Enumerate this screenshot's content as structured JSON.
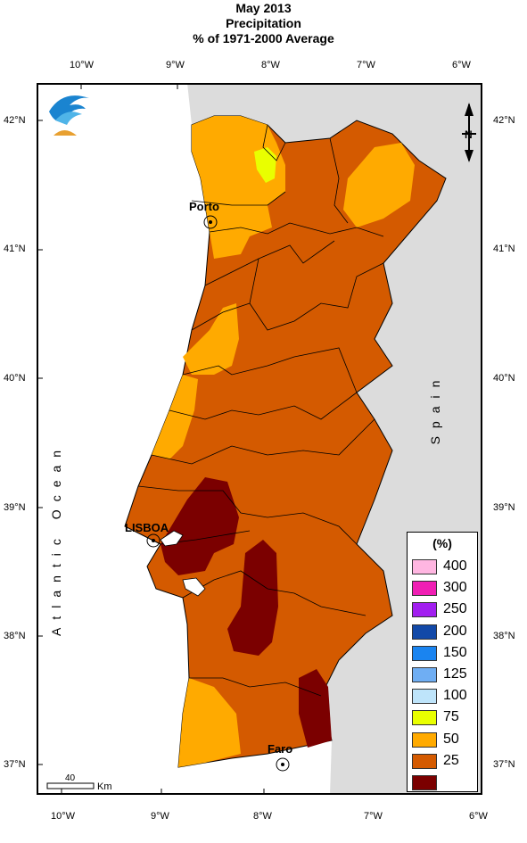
{
  "title": {
    "line1": "May 2013",
    "line2": "Precipitation",
    "line3": "% of 1971-2000 Average"
  },
  "axes": {
    "lon_ticks": [
      "10°W",
      "9°W",
      "8°W",
      "7°W",
      "6°W"
    ],
    "lat_ticks": [
      "42°N",
      "41°N",
      "40°N",
      "39°N",
      "38°N",
      "37°N"
    ]
  },
  "map": {
    "labels": {
      "ocean": "Atlantic Ocean",
      "spain": "Spain",
      "porto": "Porto",
      "lisboa": "LISBOA",
      "faro": "Faro"
    },
    "north_arrow": "N",
    "scale_bar": {
      "value": "40",
      "unit": "Km"
    }
  },
  "legend": {
    "title": "(%)",
    "entries": [
      {
        "label": "400",
        "color": "#FFB6E1"
      },
      {
        "label": "300",
        "color": "#F01FB4"
      },
      {
        "label": "250",
        "color": "#A21FF0"
      },
      {
        "label": "200",
        "color": "#1249A8"
      },
      {
        "label": "150",
        "color": "#1A84F0"
      },
      {
        "label": "125",
        "color": "#6FAEF3"
      },
      {
        "label": "100",
        "color": "#BEE4FA"
      },
      {
        "label": "75",
        "color": "#E9FF00"
      },
      {
        "label": "50",
        "color": "#FFAA00"
      },
      {
        "label": "25",
        "color": "#D45A00"
      },
      {
        "label": "",
        "color": "#7B0000"
      }
    ]
  },
  "colors": {
    "land_background": "#DCDCDC",
    "dominant_class": "#D45A00"
  }
}
